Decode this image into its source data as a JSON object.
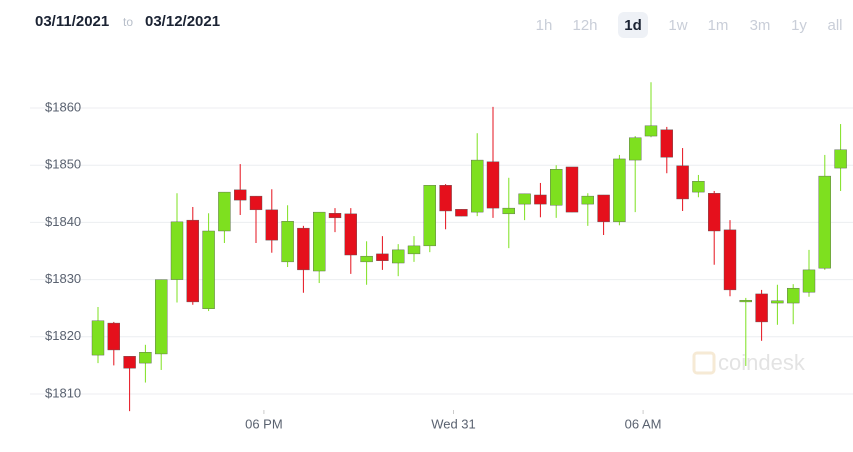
{
  "ui": {
    "date_from": "03/11/2021",
    "date_sep": "to",
    "date_to": "03/12/2021",
    "ranges": [
      "1h",
      "12h",
      "1d",
      "1w",
      "1m",
      "3m",
      "1y",
      "all"
    ],
    "selected_range": "1d",
    "watermark": "coindesk"
  },
  "chart_data": {
    "type": "candlestick",
    "x": [
      0,
      1,
      2,
      3,
      4,
      5,
      6,
      7,
      8,
      9,
      10,
      11,
      12,
      13,
      14,
      15,
      16,
      17,
      18,
      19,
      20,
      21,
      22,
      23,
      24,
      25,
      26,
      27,
      28,
      29,
      30,
      31,
      32,
      33,
      34,
      35,
      36,
      37,
      38,
      39,
      40,
      41,
      42,
      43,
      44,
      45,
      46,
      47
    ],
    "open": [
      1816.8,
      1822.4,
      1816.6,
      1815.4,
      1817,
      1830,
      1840.4,
      1824.9,
      1838.5,
      1845.7,
      1844.6,
      1842.2,
      1833.1,
      1839,
      1831.5,
      1841.6,
      1841.5,
      1833.1,
      1834.5,
      1832.9,
      1834.5,
      1835.9,
      1846.5,
      1842.3,
      1841.8,
      1850.6,
      1841.5,
      1843.2,
      1844.8,
      1843,
      1849.7,
      1843.2,
      1844.8,
      1840.1,
      1850.9,
      1855.1,
      1856.2,
      1849.9,
      1845.3,
      1845.1,
      1838.7,
      1826.1,
      1827.5,
      1825.9,
      1825.9,
      1827.8,
      1832,
      1849.5
    ],
    "high": [
      1825.2,
      1822.6,
      1816.6,
      1818.6,
      1830,
      1845.1,
      1842.7,
      1841.6,
      1845.3,
      1850.2,
      1844.6,
      1845.8,
      1843,
      1839.4,
      1841.8,
      1842.5,
      1842.5,
      1836.7,
      1837.6,
      1836.2,
      1837.6,
      1846.5,
      1846.7,
      1842.3,
      1855.6,
      1860.2,
      1847.8,
      1845,
      1846.9,
      1850,
      1849.7,
      1845.1,
      1844.8,
      1851.8,
      1855.1,
      1864.5,
      1856.7,
      1853,
      1848.3,
      1845.5,
      1840.4,
      1826.8,
      1828.2,
      1829.1,
      1829.2,
      1835.2,
      1851.8,
      1857.2
    ],
    "low": [
      1815.4,
      1815,
      1807,
      1812,
      1814.2,
      1826,
      1825.6,
      1824.5,
      1836.4,
      1841.3,
      1836.4,
      1834.7,
      1832.2,
      1827.7,
      1829.4,
      1838.3,
      1831,
      1829.1,
      1831.7,
      1830.6,
      1833.1,
      1834.8,
      1838.8,
      1841.1,
      1841.1,
      1840.8,
      1835.5,
      1840.4,
      1840.9,
      1840.8,
      1841.8,
      1839.4,
      1837.8,
      1839.5,
      1841.8,
      1854.9,
      1848.6,
      1842,
      1844.4,
      1832.6,
      1827.1,
      1814.9,
      1819.3,
      1822.1,
      1822.2,
      1827,
      1831.7,
      1845.5
    ],
    "close": [
      1822.8,
      1817.7,
      1814.5,
      1817.3,
      1830,
      1840.1,
      1826.1,
      1838.5,
      1845.3,
      1843.9,
      1842.2,
      1836.9,
      1840.2,
      1831.7,
      1841.8,
      1840.8,
      1834.3,
      1834.1,
      1833.3,
      1835.2,
      1835.9,
      1846.5,
      1842,
      1841.1,
      1850.9,
      1842.5,
      1842.5,
      1845,
      1843.2,
      1849.3,
      1841.8,
      1844.6,
      1840.1,
      1851.1,
      1854.8,
      1856.9,
      1851.4,
      1844.1,
      1847.2,
      1838.5,
      1828.2,
      1826.4,
      1822.6,
      1826.3,
      1828.5,
      1831.7,
      1848.1,
      1852.7
    ],
    "up_color": "#7ee01f",
    "down_color": "#e5101c",
    "xlim": [
      -0.5,
      47.5
    ],
    "xticks": [
      {
        "value": 10.5,
        "label": "06 PM"
      },
      {
        "value": 22.5,
        "label": "Wed 31"
      },
      {
        "value": 34.5,
        "label": "06 AM"
      }
    ],
    "ylim": [
      1807.2,
      1868.4
    ],
    "yticks": [
      {
        "value": 1810,
        "label": "$1810"
      },
      {
        "value": 1820,
        "label": "$1820"
      },
      {
        "value": 1830,
        "label": "$1830"
      },
      {
        "value": 1840,
        "label": "$1840"
      },
      {
        "value": 1850,
        "label": "$1850"
      },
      {
        "value": 1860,
        "label": "$1860"
      }
    ],
    "grid": true
  }
}
